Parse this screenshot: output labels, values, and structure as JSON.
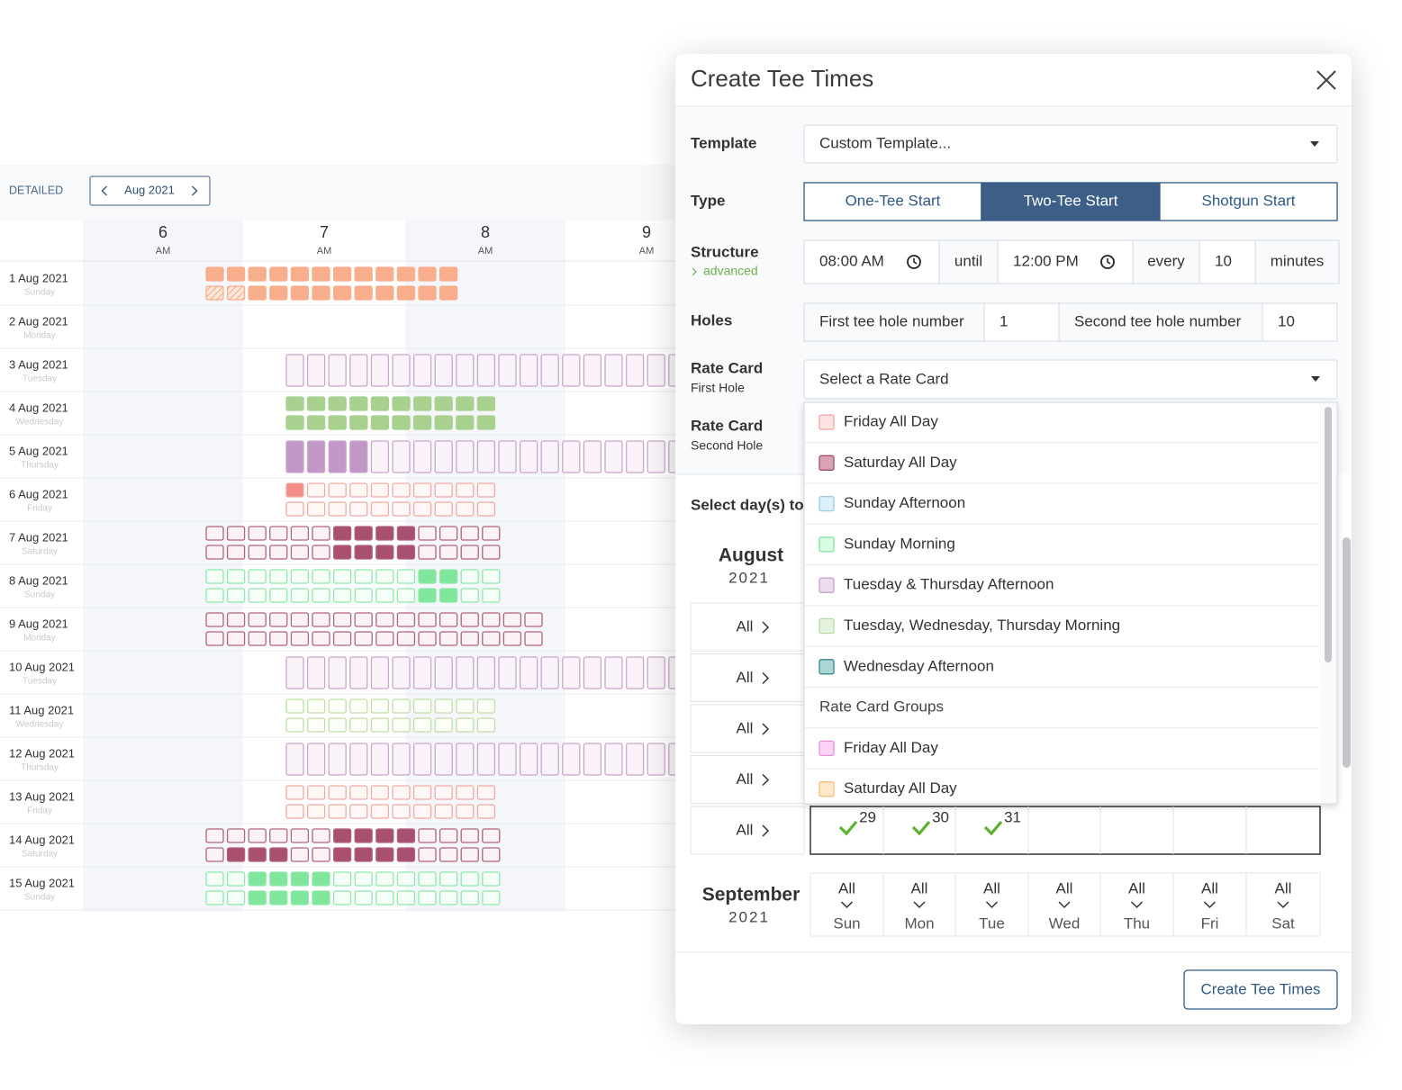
{
  "schedule": {
    "view": "DETAILED",
    "month": "Aug 2021",
    "hours": [
      {
        "hour": "6",
        "period": "AM"
      },
      {
        "hour": "7",
        "period": "AM"
      },
      {
        "hour": "8",
        "period": "AM"
      },
      {
        "hour": "9",
        "period": "AM"
      }
    ],
    "rows": [
      {
        "date": "1 Aug 2021",
        "weekday": "Sunday"
      },
      {
        "date": "2 Aug 2021",
        "weekday": "Monday"
      },
      {
        "date": "3 Aug 2021",
        "weekday": "Tuesday"
      },
      {
        "date": "4 Aug 2021",
        "weekday": "Wednesday"
      },
      {
        "date": "5 Aug 2021",
        "weekday": "Thursday"
      },
      {
        "date": "6 Aug 2021",
        "weekday": "Friday"
      },
      {
        "date": "7 Aug 2021",
        "weekday": "Saturday"
      },
      {
        "date": "8 Aug 2021",
        "weekday": "Sunday"
      },
      {
        "date": "9 Aug 2021",
        "weekday": "Monday"
      },
      {
        "date": "10 Aug 2021",
        "weekday": "Tuesday"
      },
      {
        "date": "11 Aug 2021",
        "weekday": "Wednesday"
      },
      {
        "date": "12 Aug 2021",
        "weekday": "Thursday"
      },
      {
        "date": "13 Aug 2021",
        "weekday": "Friday"
      },
      {
        "date": "14 Aug 2021",
        "weekday": "Saturday"
      },
      {
        "date": "15 Aug 2021",
        "weekday": "Sunday"
      }
    ]
  },
  "dialog": {
    "title": "Create Tee Times",
    "template": {
      "label": "Template",
      "value": "Custom Template..."
    },
    "type": {
      "label": "Type",
      "options": [
        "One-Tee Start",
        "Two-Tee Start",
        "Shotgun Start"
      ],
      "selected": 1
    },
    "structure": {
      "label": "Structure",
      "link": "advanced",
      "start": "08:00 AM",
      "until": "until",
      "end": "12:00 PM",
      "every": "every",
      "interval": "10",
      "unit": "minutes"
    },
    "holes": {
      "label": "Holes",
      "first_label": "First tee hole number",
      "first": "1",
      "second_label": "Second tee hole number",
      "second": "10"
    },
    "rate_card_first": {
      "label": "Rate Card",
      "sublabel": "First Hole",
      "placeholder": "Select a Rate Card"
    },
    "rate_card_second": {
      "label": "Rate Card",
      "sublabel": "Second Hole"
    },
    "rate_cards": [
      {
        "label": "Friday All Day",
        "color": "#fde2e2",
        "border": "#f0a4a4"
      },
      {
        "label": "Saturday All Day",
        "color": "#d9a3b6",
        "border": "#9c4f6c"
      },
      {
        "label": "Sunday Afternoon",
        "color": "#ddeffa",
        "border": "#9ccbe6"
      },
      {
        "label": "Sunday Morning",
        "color": "#d9fbe2",
        "border": "#80e0a0"
      },
      {
        "label": "Tuesday & Thursday Afternoon",
        "color": "#eddcf0",
        "border": "#c6a0cc"
      },
      {
        "label": "Tuesday, Wednesday, Thursday Morning",
        "color": "#e5f2dd",
        "border": "#b6d9a0"
      },
      {
        "label": "Wednesday Afternoon",
        "color": "#a9d7d7",
        "border": "#3a8888"
      }
    ],
    "group_header": "Rate Card Groups",
    "rate_card_groups": [
      {
        "label": "Friday All Day",
        "color": "#fbd2f5",
        "border": "#e690da"
      },
      {
        "label": "Saturday All Day",
        "color": "#fde9c9",
        "border": "#f0c07e"
      }
    ],
    "days_label": "Select day(s) to",
    "august": {
      "month": "August",
      "year": "2021",
      "week_toggles": [
        "All",
        "All",
        "All",
        "All",
        "All"
      ],
      "last_week_days": [
        "29",
        "30",
        "31"
      ]
    },
    "september": {
      "month": "September",
      "year": "2021",
      "columns": [
        {
          "toggle": "All",
          "day": "Sun"
        },
        {
          "toggle": "All",
          "day": "Mon"
        },
        {
          "toggle": "All",
          "day": "Tue"
        },
        {
          "toggle": "All",
          "day": "Wed"
        },
        {
          "toggle": "All",
          "day": "Thu"
        },
        {
          "toggle": "All",
          "day": "Fri"
        },
        {
          "toggle": "All",
          "day": "Sat"
        }
      ]
    },
    "submit": "Create Tee Times"
  }
}
